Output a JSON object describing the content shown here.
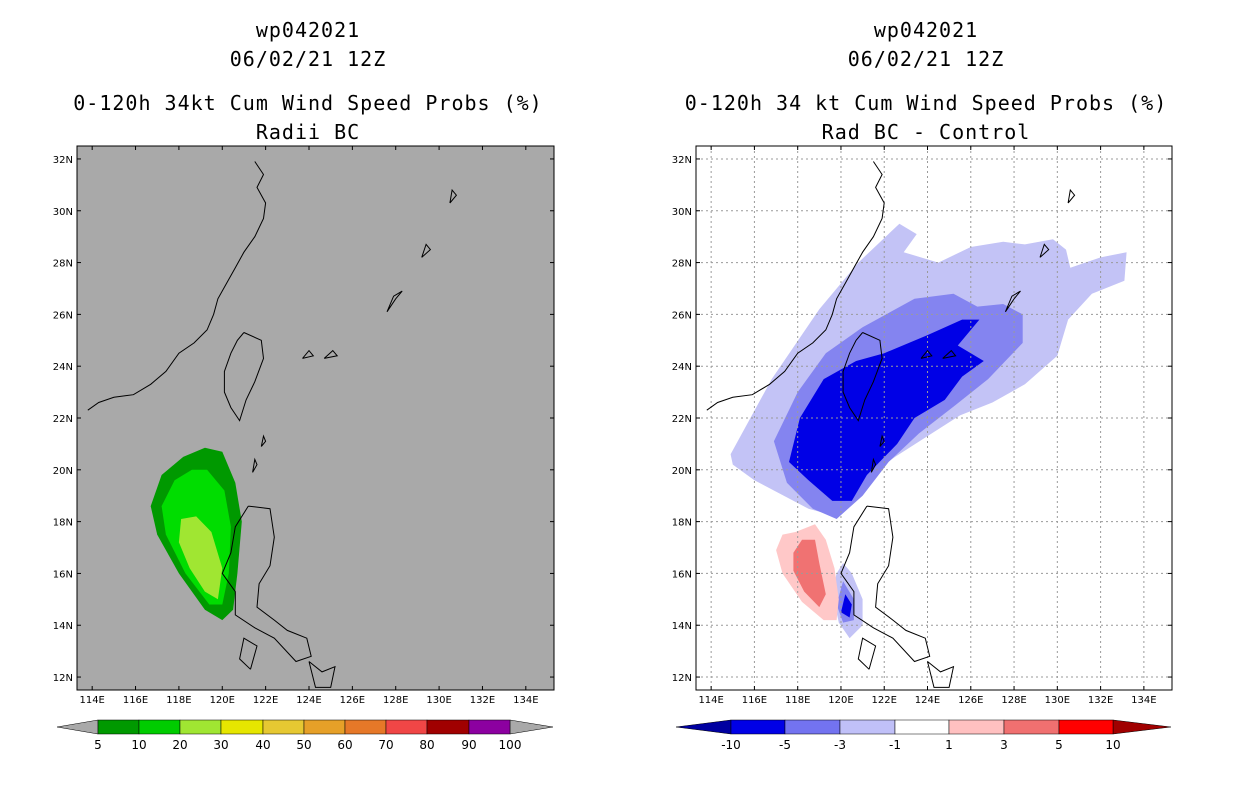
{
  "chart_data": [
    {
      "type": "heatmap",
      "id": "left",
      "title": "wp042021",
      "subtitle": "06/02/21 12Z",
      "title2": "0-120h 34kt Cum Wind Speed Probs (%)",
      "subtitle2": "Radii BC",
      "background": "#a9a9a9",
      "grid": false,
      "xlim": [
        113.3,
        135.3
      ],
      "ylim": [
        11.5,
        32.5
      ],
      "xticks": [
        "114E",
        "116E",
        "118E",
        "120E",
        "122E",
        "124E",
        "126E",
        "128E",
        "130E",
        "132E",
        "134E"
      ],
      "yticks": [
        "12N",
        "14N",
        "16N",
        "18N",
        "20N",
        "22N",
        "24N",
        "26N",
        "28N",
        "30N",
        "32N"
      ],
      "legend_labels": [
        "5",
        "10",
        "20",
        "30",
        "40",
        "50",
        "60",
        "70",
        "80",
        "90",
        "100"
      ],
      "legend_colors": [
        "#009900",
        "#00cc00",
        "#a0e632",
        "#e6e600",
        "#e6c832",
        "#e6a028",
        "#e67828",
        "#f04646",
        "#a00000",
        "#8c00a0"
      ],
      "contours": [
        {
          "level": "5-10",
          "color": "#009900",
          "points": [
            [
              119.2,
              20.85
            ],
            [
              120.0,
              20.7
            ],
            [
              120.6,
              19.5
            ],
            [
              120.9,
              18.0
            ],
            [
              120.7,
              16.0
            ],
            [
              120.5,
              14.6
            ],
            [
              120.0,
              14.2
            ],
            [
              119.2,
              14.6
            ],
            [
              118.0,
              16.0
            ],
            [
              117.0,
              17.5
            ],
            [
              116.7,
              18.6
            ],
            [
              117.2,
              19.8
            ],
            [
              118.2,
              20.5
            ]
          ]
        },
        {
          "level": "10-20",
          "color": "#00dd00",
          "points": [
            [
              119.3,
              20.0
            ],
            [
              120.1,
              19.2
            ],
            [
              120.4,
              17.8
            ],
            [
              120.3,
              16.0
            ],
            [
              120.0,
              14.8
            ],
            [
              119.4,
              14.8
            ],
            [
              118.3,
              16.0
            ],
            [
              117.4,
              17.5
            ],
            [
              117.2,
              18.6
            ],
            [
              117.8,
              19.6
            ],
            [
              118.6,
              20.0
            ]
          ]
        },
        {
          "level": "20-30",
          "color": "#a0e632",
          "points": [
            [
              118.8,
              18.2
            ],
            [
              119.5,
              17.6
            ],
            [
              120.0,
              16.2
            ],
            [
              119.8,
              15.0
            ],
            [
              119.2,
              15.3
            ],
            [
              118.5,
              16.2
            ],
            [
              118.0,
              17.2
            ],
            [
              118.1,
              18.1
            ]
          ]
        }
      ]
    },
    {
      "type": "heatmap",
      "id": "right",
      "title": "wp042021",
      "subtitle": "06/02/21 12Z",
      "title2": "0-120h 34 kt Cum Wind Speed Probs (%)",
      "subtitle2": "Rad BC - Control",
      "background": "#ffffff",
      "grid": true,
      "xlim": [
        113.3,
        135.3
      ],
      "ylim": [
        11.5,
        32.5
      ],
      "xticks": [
        "114E",
        "116E",
        "118E",
        "120E",
        "122E",
        "124E",
        "126E",
        "128E",
        "130E",
        "132E",
        "134E"
      ],
      "yticks": [
        "12N",
        "14N",
        "16N",
        "18N",
        "20N",
        "22N",
        "24N",
        "26N",
        "28N",
        "30N",
        "32N"
      ],
      "legend_labels": [
        "-10",
        "-5",
        "-3",
        "-1",
        "1",
        "3",
        "5",
        "10"
      ],
      "legend_colors": [
        "#0000a0",
        "#0000e6",
        "#7373f0",
        "#c0c0f8",
        "#ffffff",
        "#ffc0c0",
        "#f07070",
        "#ff0000",
        "#a00000"
      ],
      "contours": [
        {
          "level": "-1 to -3",
          "color": "#c3c3f6",
          "points": [
            [
              114.9,
              20.6
            ],
            [
              116.8,
              23.5
            ],
            [
              119.0,
              26.2
            ],
            [
              120.8,
              28.0
            ],
            [
              122.7,
              29.5
            ],
            [
              123.5,
              29.1
            ],
            [
              122.9,
              28.4
            ],
            [
              124.5,
              28.0
            ],
            [
              126.0,
              28.6
            ],
            [
              127.5,
              28.8
            ],
            [
              128.5,
              28.7
            ],
            [
              129.8,
              28.9
            ],
            [
              130.4,
              28.5
            ],
            [
              130.6,
              27.8
            ],
            [
              132.0,
              28.2
            ],
            [
              133.2,
              28.4
            ],
            [
              133.1,
              27.3
            ],
            [
              131.6,
              26.8
            ],
            [
              130.5,
              25.8
            ],
            [
              130.0,
              24.4
            ],
            [
              128.5,
              23.3
            ],
            [
              127.0,
              22.6
            ],
            [
              125.5,
              22.1
            ],
            [
              124.0,
              21.3
            ],
            [
              122.5,
              20.5
            ],
            [
              121.0,
              19.6
            ],
            [
              119.8,
              18.2
            ],
            [
              118.5,
              18.5
            ],
            [
              116.0,
              19.6
            ],
            [
              115.0,
              20.2
            ]
          ]
        },
        {
          "level": "-3 to -5",
          "color": "#8484f0",
          "points": [
            [
              116.9,
              21.1
            ],
            [
              118.0,
              23.0
            ],
            [
              119.3,
              24.5
            ],
            [
              121.0,
              25.5
            ],
            [
              123.4,
              26.6
            ],
            [
              125.2,
              26.8
            ],
            [
              126.3,
              26.3
            ],
            [
              127.5,
              26.4
            ],
            [
              128.4,
              26.0
            ],
            [
              128.4,
              24.9
            ],
            [
              126.8,
              23.5
            ],
            [
              125.3,
              22.5
            ],
            [
              123.6,
              21.4
            ],
            [
              122.2,
              20.3
            ],
            [
              121.0,
              19.0
            ],
            [
              119.8,
              18.1
            ],
            [
              118.7,
              18.5
            ],
            [
              117.5,
              19.5
            ]
          ]
        },
        {
          "level": "-5 to -10",
          "color": "#0000e6",
          "points": [
            [
              117.6,
              20.3
            ],
            [
              118.1,
              22.0
            ],
            [
              119.2,
              23.5
            ],
            [
              120.7,
              24.2
            ],
            [
              122.0,
              24.5
            ],
            [
              124.0,
              25.2
            ],
            [
              125.6,
              25.8
            ],
            [
              126.4,
              25.8
            ],
            [
              125.4,
              24.8
            ],
            [
              126.6,
              24.2
            ],
            [
              125.6,
              23.6
            ],
            [
              124.8,
              22.7
            ],
            [
              123.4,
              22.0
            ],
            [
              122.6,
              21.0
            ],
            [
              121.2,
              19.8
            ],
            [
              120.5,
              18.8
            ],
            [
              119.6,
              18.8
            ],
            [
              118.5,
              19.6
            ]
          ]
        },
        {
          "level": "-1 to -3 (south)",
          "color": "#c3c3f6",
          "points": [
            [
              120.1,
              16.4
            ],
            [
              120.5,
              16.0
            ],
            [
              121.0,
              15.0
            ],
            [
              121.0,
              14.0
            ],
            [
              120.4,
              13.5
            ],
            [
              119.9,
              14.1
            ],
            [
              119.6,
              15.3
            ],
            [
              119.8,
              16.0
            ]
          ]
        },
        {
          "level": "-3 to -5 (south)",
          "color": "#8484f0",
          "points": [
            [
              120.1,
              15.7
            ],
            [
              120.6,
              15.0
            ],
            [
              120.6,
              14.2
            ],
            [
              120.1,
              14.1
            ],
            [
              119.8,
              14.8
            ]
          ]
        },
        {
          "level": "-5 to -10 (south)",
          "color": "#0000e6",
          "points": [
            [
              120.2,
              15.2
            ],
            [
              120.5,
              14.8
            ],
            [
              120.4,
              14.3
            ],
            [
              120.0,
              14.5
            ]
          ]
        },
        {
          "level": "1 to 3",
          "color": "#ffc8c8",
          "points": [
            [
              117.9,
              17.6
            ],
            [
              118.8,
              17.9
            ],
            [
              119.3,
              17.3
            ],
            [
              119.7,
              16.2
            ],
            [
              119.9,
              15.0
            ],
            [
              119.8,
              14.2
            ],
            [
              119.2,
              14.2
            ],
            [
              118.2,
              14.9
            ],
            [
              117.3,
              16.0
            ],
            [
              117.0,
              16.9
            ],
            [
              117.3,
              17.5
            ]
          ]
        },
        {
          "level": "3 to 5",
          "color": "#f07272",
          "points": [
            [
              118.2,
              17.3
            ],
            [
              118.8,
              17.3
            ],
            [
              119.0,
              16.4
            ],
            [
              119.3,
              15.2
            ],
            [
              119.0,
              14.7
            ],
            [
              118.3,
              15.3
            ],
            [
              117.8,
              16.1
            ],
            [
              117.8,
              16.8
            ]
          ]
        }
      ]
    }
  ]
}
